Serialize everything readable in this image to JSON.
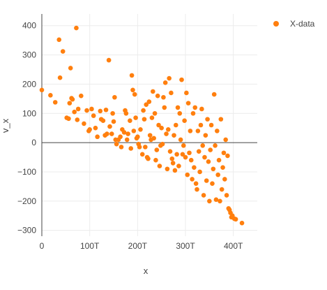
{
  "chart_data": {
    "type": "scatter",
    "xlabel": "x",
    "ylabel": "v_x",
    "xlim": [
      0,
      450
    ],
    "ylim": [
      -320,
      440
    ],
    "x_ticks": [
      0,
      100,
      200,
      300,
      400
    ],
    "x_tick_labels": [
      "0",
      "100T",
      "200T",
      "300T",
      "400T"
    ],
    "y_ticks": [
      -300,
      -200,
      -100,
      0,
      100,
      200,
      300,
      400
    ],
    "y_tick_labels": [
      "−300",
      "−200",
      "−100",
      "0",
      "100",
      "200",
      "300",
      "400"
    ],
    "grid": true,
    "legend_position": "top-right",
    "series": [
      {
        "name": "X-data",
        "color": "#ff7f0e",
        "points": [
          [
            0,
            180
          ],
          [
            18,
            162
          ],
          [
            28,
            138
          ],
          [
            36,
            352
          ],
          [
            38,
            222
          ],
          [
            44,
            312
          ],
          [
            52,
            85
          ],
          [
            56,
            82
          ],
          [
            58,
            135
          ],
          [
            60,
            255
          ],
          [
            62,
            152
          ],
          [
            64,
            148
          ],
          [
            68,
            105
          ],
          [
            72,
            392
          ],
          [
            74,
            78
          ],
          [
            76,
            115
          ],
          [
            82,
            160
          ],
          [
            88,
            65
          ],
          [
            94,
            110
          ],
          [
            98,
            40
          ],
          [
            100,
            45
          ],
          [
            104,
            115
          ],
          [
            108,
            92
          ],
          [
            112,
            50
          ],
          [
            116,
            20
          ],
          [
            122,
            108
          ],
          [
            124,
            80
          ],
          [
            128,
            75
          ],
          [
            132,
            25
          ],
          [
            134,
            112
          ],
          [
            136,
            30
          ],
          [
            140,
            282
          ],
          [
            142,
            55
          ],
          [
            146,
            30
          ],
          [
            148,
            100
          ],
          [
            150,
            72
          ],
          [
            152,
            155
          ],
          [
            154,
            10
          ],
          [
            156,
            -5
          ],
          [
            160,
            10
          ],
          [
            164,
            20
          ],
          [
            166,
            -15
          ],
          [
            168,
            45
          ],
          [
            172,
            35
          ],
          [
            174,
            110
          ],
          [
            176,
            100
          ],
          [
            178,
            10
          ],
          [
            180,
            30
          ],
          [
            184,
            75
          ],
          [
            186,
            -20
          ],
          [
            188,
            230
          ],
          [
            190,
            180
          ],
          [
            192,
            40
          ],
          [
            194,
            165
          ],
          [
            196,
            85
          ],
          [
            198,
            15
          ],
          [
            200,
            20
          ],
          [
            202,
            -5
          ],
          [
            204,
            -15
          ],
          [
            206,
            45
          ],
          [
            210,
            -40
          ],
          [
            212,
            110
          ],
          [
            214,
            80
          ],
          [
            216,
            -15
          ],
          [
            218,
            130
          ],
          [
            220,
            -50
          ],
          [
            222,
            -55
          ],
          [
            224,
            140
          ],
          [
            226,
            25
          ],
          [
            228,
            10
          ],
          [
            230,
            85
          ],
          [
            232,
            175
          ],
          [
            234,
            15
          ],
          [
            236,
            100
          ],
          [
            238,
            -60
          ],
          [
            240,
            -25
          ],
          [
            242,
            160
          ],
          [
            244,
            60
          ],
          [
            246,
            -80
          ],
          [
            248,
            -10
          ],
          [
            250,
            50
          ],
          [
            252,
            -5
          ],
          [
            254,
            155
          ],
          [
            256,
            120
          ],
          [
            258,
            205
          ],
          [
            260,
            30
          ],
          [
            262,
            -90
          ],
          [
            264,
            45
          ],
          [
            266,
            220
          ],
          [
            268,
            -30
          ],
          [
            270,
            170
          ],
          [
            272,
            -55
          ],
          [
            274,
            -70
          ],
          [
            276,
            25
          ],
          [
            278,
            -95
          ],
          [
            280,
            60
          ],
          [
            282,
            -40
          ],
          [
            284,
            120
          ],
          [
            286,
            -80
          ],
          [
            288,
            100
          ],
          [
            290,
            10
          ],
          [
            292,
            215
          ],
          [
            294,
            -40
          ],
          [
            296,
            -10
          ],
          [
            298,
            75
          ],
          [
            300,
            -50
          ],
          [
            302,
            170
          ],
          [
            304,
            -110
          ],
          [
            306,
            135
          ],
          [
            308,
            -35
          ],
          [
            310,
            40
          ],
          [
            312,
            -60
          ],
          [
            314,
            -125
          ],
          [
            316,
            100
          ],
          [
            318,
            -85
          ],
          [
            320,
            120
          ],
          [
            322,
            -140
          ],
          [
            324,
            -160
          ],
          [
            326,
            40
          ],
          [
            328,
            -30
          ],
          [
            330,
            -100
          ],
          [
            332,
            60
          ],
          [
            334,
            115
          ],
          [
            336,
            -10
          ],
          [
            338,
            -180
          ],
          [
            340,
            -50
          ],
          [
            342,
            25
          ],
          [
            344,
            -130
          ],
          [
            346,
            80
          ],
          [
            348,
            -65
          ],
          [
            350,
            -200
          ],
          [
            352,
            -25
          ],
          [
            354,
            60
          ],
          [
            356,
            -140
          ],
          [
            358,
            -90
          ],
          [
            360,
            165
          ],
          [
            362,
            -10
          ],
          [
            364,
            -195
          ],
          [
            366,
            40
          ],
          [
            368,
            -110
          ],
          [
            370,
            -60
          ],
          [
            372,
            -200
          ],
          [
            374,
            80
          ],
          [
            376,
            -160
          ],
          [
            378,
            -85
          ],
          [
            380,
            -35
          ],
          [
            382,
            -125
          ],
          [
            384,
            10
          ],
          [
            386,
            -180
          ],
          [
            388,
            -45
          ],
          [
            390,
            -225
          ],
          [
            392,
            -230
          ],
          [
            394,
            -240
          ],
          [
            396,
            -255
          ],
          [
            398,
            -250
          ],
          [
            402,
            -260
          ],
          [
            405,
            -262
          ],
          [
            418,
            -275
          ]
        ]
      }
    ]
  }
}
